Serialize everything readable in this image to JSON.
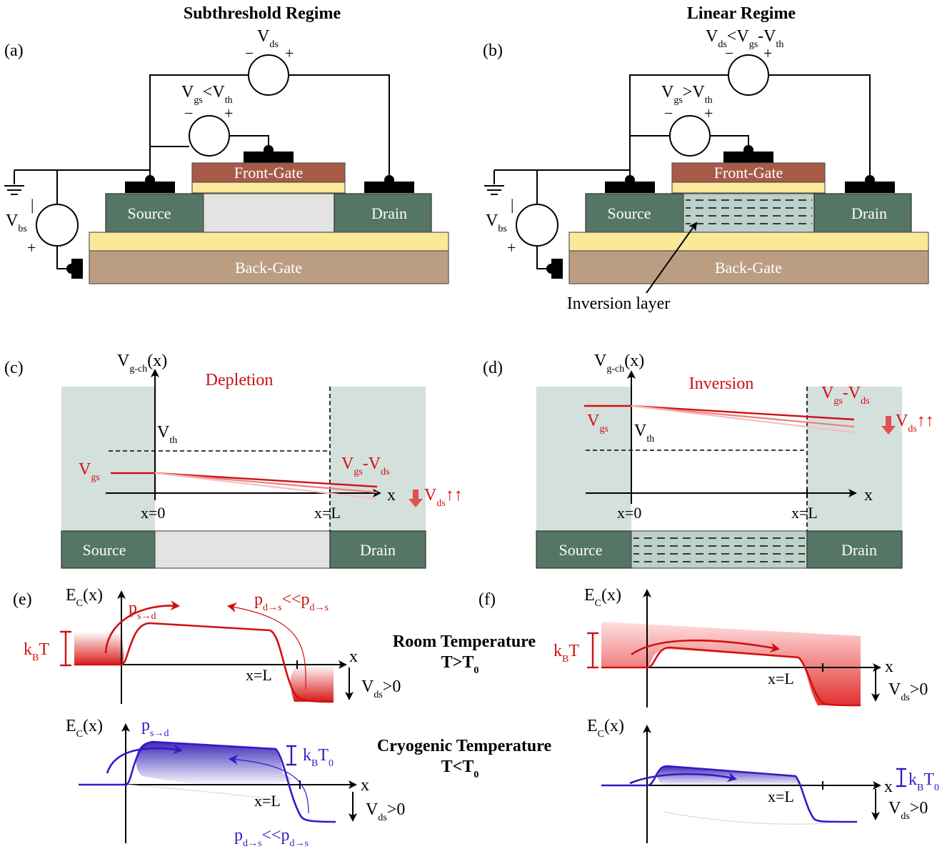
{
  "titles": {
    "subthreshold": "Subthreshold Regime",
    "linear": "Linear Regime"
  },
  "panels": {
    "a": "(a)",
    "b": "(b)",
    "c": "(c)",
    "d": "(d)",
    "e": "(e)",
    "f": "(f)"
  },
  "device": {
    "front_gate": "Front-Gate",
    "back_gate": "Back-Gate",
    "source": "Source",
    "drain": "Drain",
    "inversion_layer": "Inversion layer"
  },
  "sym": {
    "V": "V",
    "E": "E",
    "k": "k",
    "T": "T",
    "p": "p",
    "ds": "ds",
    "gs": "gs",
    "th": "th",
    "bs": "bs",
    "gch": "g-ch",
    "C": "C",
    "B": "B",
    "zero": "0",
    "lt": "<",
    "gt": ">",
    "minus": "-",
    "plus": "+",
    "pm_minus": "−",
    "x_arg": "(x)",
    "x": "x",
    "x0": "x=0",
    "xL": "x=L",
    "sd": "s→d",
    "ds_arrow": "d→s",
    "ll": "<<",
    "up2": "↑↑",
    "gt0": ">0"
  },
  "regions": {
    "depletion": "Depletion",
    "inversion": "Inversion"
  },
  "temps": {
    "room": "Room Temperature",
    "room_cond": "T>T",
    "cryo": "Cryogenic Temperature",
    "cryo_cond": "T<T"
  }
}
